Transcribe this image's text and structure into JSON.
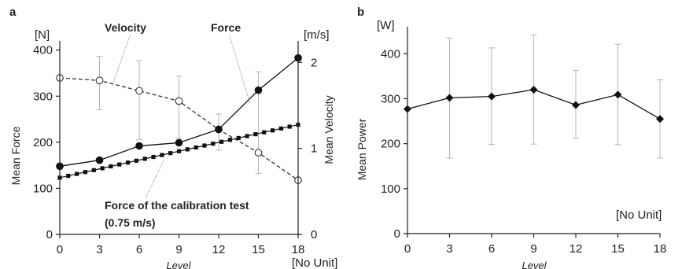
{
  "chart_data": [
    {
      "panel_label": "a",
      "type": "line",
      "xlabel": "Level",
      "x_unit": "[No Unit]",
      "x": [
        0,
        3,
        6,
        9,
        12,
        15,
        18
      ],
      "xticks": [
        "0",
        "3",
        "6",
        "9",
        "12",
        "15",
        "18"
      ],
      "xlim": [
        0,
        18
      ],
      "left_axis": {
        "label": "Mean Force",
        "unit": "[N]",
        "ylim": [
          0,
          420
        ],
        "ticks": [
          0,
          100,
          200,
          300,
          400
        ],
        "tick_labels": [
          "0",
          "100",
          "200",
          "300",
          "400"
        ]
      },
      "right_axis": {
        "label": "Mean Velocity",
        "unit": "[m/s]",
        "ylim": [
          0,
          2.25
        ],
        "ticks": [
          0,
          1,
          2
        ],
        "tick_labels": [
          "0",
          "1",
          "2"
        ]
      },
      "series": [
        {
          "name": "Force",
          "axis": "left",
          "style": "solid",
          "marker": "filled-circle",
          "values": [
            148,
            161,
            192,
            199,
            228,
            313,
            383
          ],
          "err_low": [
            null,
            null,
            null,
            null,
            null,
            null,
            null
          ],
          "err_high": [
            null,
            null,
            null,
            null,
            null,
            null,
            null
          ]
        },
        {
          "name": "Velocity",
          "axis": "right",
          "style": "dashed",
          "marker": "open-circle",
          "values": [
            1.82,
            1.79,
            1.67,
            1.55,
            1.22,
            0.95,
            0.63
          ],
          "err_low": [
            null,
            1.45,
            1.1,
            1.12,
            0.98,
            0.71,
            null
          ],
          "err_high": [
            null,
            2.07,
            2.02,
            1.84,
            1.4,
            1.89,
            null
          ]
        },
        {
          "name": "Force of the calibration test (0.75 m/s)",
          "axis": "left",
          "style": "dotted-squares",
          "marker": "filled-square",
          "values": [
            123,
            142,
            161,
            180,
            200,
            219,
            238
          ]
        }
      ],
      "annotations": [
        "Velocity",
        "Force",
        "Force of the calibration test",
        "(0.75 m/s)"
      ]
    },
    {
      "panel_label": "b",
      "type": "line",
      "xlabel": "Level",
      "x_unit": "[No Unit]",
      "x": [
        0,
        3,
        6,
        9,
        12,
        15,
        18
      ],
      "xticks": [
        "0",
        "3",
        "6",
        "9",
        "12",
        "15",
        "18"
      ],
      "xlim": [
        0,
        18
      ],
      "ylabel": "Mean Power",
      "y_unit": "[W]",
      "ylim": [
        0,
        460
      ],
      "yticks": [
        0,
        100,
        200,
        300,
        400
      ],
      "ytick_labels": [
        "0",
        "100",
        "200",
        "300",
        "400"
      ],
      "series": [
        {
          "name": "Mean Power",
          "marker": "filled-diamond",
          "values": [
            277,
            302,
            305,
            320,
            286,
            309,
            255
          ],
          "err_low": [
            null,
            168,
            198,
            199,
            212,
            198,
            168
          ],
          "err_high": [
            null,
            435,
            413,
            442,
            363,
            421,
            342
          ]
        }
      ]
    }
  ]
}
